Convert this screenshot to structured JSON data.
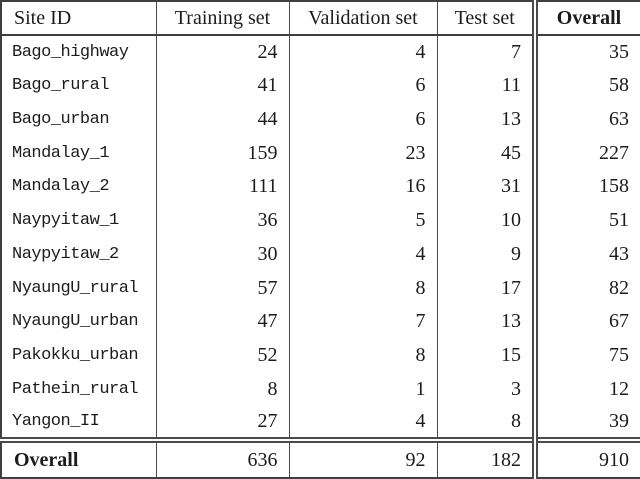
{
  "meta": {
    "background_color": "#ffffff",
    "text_color": "#1c1c1c",
    "rule_color": "#4a4a4a"
  },
  "table": {
    "headers": {
      "site_id": "Site ID",
      "training": "Training set",
      "validation": "Validation set",
      "test": "Test set",
      "overall": "Overall"
    },
    "rows": [
      {
        "site_id": "Bago_highway",
        "training": "24",
        "validation": "4",
        "test": "7",
        "overall": "35"
      },
      {
        "site_id": "Bago_rural",
        "training": "41",
        "validation": "6",
        "test": "11",
        "overall": "58"
      },
      {
        "site_id": "Bago_urban",
        "training": "44",
        "validation": "6",
        "test": "13",
        "overall": "63"
      },
      {
        "site_id": "Mandalay_1",
        "training": "159",
        "validation": "23",
        "test": "45",
        "overall": "227"
      },
      {
        "site_id": "Mandalay_2",
        "training": "111",
        "validation": "16",
        "test": "31",
        "overall": "158"
      },
      {
        "site_id": "Naypyitaw_1",
        "training": "36",
        "validation": "5",
        "test": "10",
        "overall": "51"
      },
      {
        "site_id": "Naypyitaw_2",
        "training": "30",
        "validation": "4",
        "test": "9",
        "overall": "43"
      },
      {
        "site_id": "NyaungU_rural",
        "training": "57",
        "validation": "8",
        "test": "17",
        "overall": "82"
      },
      {
        "site_id": "NyaungU_urban",
        "training": "47",
        "validation": "7",
        "test": "13",
        "overall": "67"
      },
      {
        "site_id": "Pakokku_urban",
        "training": "52",
        "validation": "8",
        "test": "15",
        "overall": "75"
      },
      {
        "site_id": "Pathein_rural",
        "training": "8",
        "validation": "1",
        "test": "3",
        "overall": "12"
      },
      {
        "site_id": "Yangon_II",
        "training": "27",
        "validation": "4",
        "test": "8",
        "overall": "39"
      }
    ],
    "footer": {
      "label": "Overall",
      "training": "636",
      "validation": "92",
      "test": "182",
      "overall": "910"
    }
  }
}
